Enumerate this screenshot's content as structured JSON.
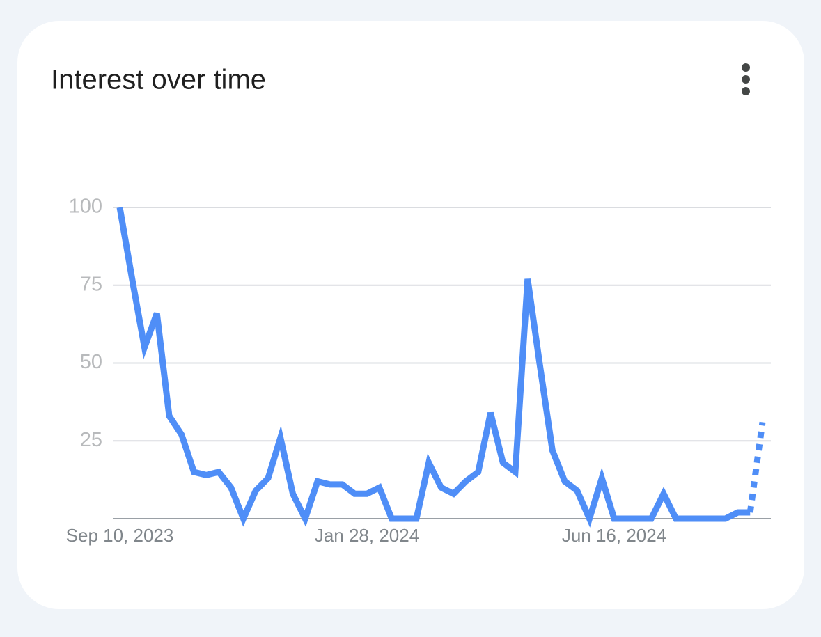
{
  "chart_data": {
    "type": "line",
    "title": "Interest over time",
    "categories": [
      "Sep 10, 2023",
      null,
      null,
      null,
      null,
      null,
      null,
      null,
      null,
      null,
      null,
      null,
      null,
      null,
      null,
      null,
      null,
      null,
      null,
      null,
      "Jan 28, 2024",
      null,
      null,
      null,
      null,
      null,
      null,
      null,
      null,
      null,
      null,
      null,
      null,
      null,
      null,
      null,
      null,
      null,
      null,
      null,
      "Jun 16, 2024",
      null,
      null,
      null,
      null,
      null,
      null,
      null,
      null,
      null,
      null,
      null,
      null
    ],
    "series": [
      {
        "name": "Interest",
        "color": "#4f8ef7",
        "values": [
          100,
          77,
          55,
          66,
          33,
          27,
          15,
          14,
          15,
          10,
          0,
          9,
          13,
          26,
          8,
          0,
          12,
          11,
          11,
          8,
          8,
          10,
          0,
          0,
          0,
          18,
          10,
          8,
          12,
          15,
          34,
          18,
          15,
          77,
          49,
          22,
          12,
          9,
          0,
          13,
          0,
          0,
          0,
          0,
          8,
          0,
          0,
          0,
          0,
          0,
          2,
          2,
          31
        ]
      }
    ],
    "partial_last_point": true,
    "ylim": [
      0,
      100
    ],
    "yticks": [
      25,
      50,
      75,
      100
    ],
    "grid": true
  }
}
